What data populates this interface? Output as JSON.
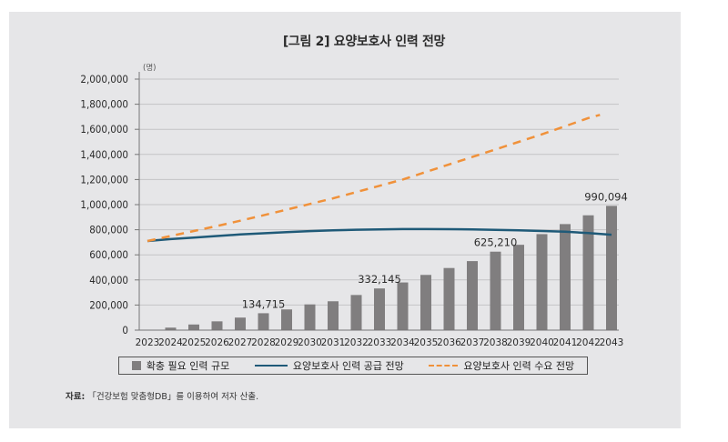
{
  "figure": {
    "title": "[그림 2] 요양보호사 인력 전망",
    "source_label": "자료:",
    "source_text": "「건강보험 맞춤형DB」를 이용하여 저자 산출."
  },
  "chart_data": {
    "type": "bar+line",
    "title": "[그림 2] 요양보호사 인력 전망",
    "ylabel": "(명)",
    "xlabel": "",
    "ylim": [
      0,
      2000000
    ],
    "yticks": [
      0,
      200000,
      400000,
      600000,
      800000,
      1000000,
      1200000,
      1400000,
      1600000,
      1800000,
      2000000
    ],
    "ytick_labels": [
      "0",
      "200,000",
      "400,000",
      "600,000",
      "800,000",
      "1,000,000",
      "1,200,000",
      "1,400,000",
      "1,600,000",
      "1,800,000",
      "2,000,000"
    ],
    "grid": true,
    "legend_position": "bottom",
    "categories": [
      "2023",
      "2024",
      "2025",
      "2026",
      "2027",
      "2028",
      "2029",
      "2030",
      "2031",
      "2032",
      "2033",
      "2034",
      "2035",
      "2036",
      "2037",
      "2038",
      "2039",
      "2040",
      "2041",
      "2042",
      "2043"
    ],
    "series": [
      {
        "name": "확충 필요 인력 규모",
        "type": "bar",
        "color": "#807e7f",
        "values": [
          0,
          20000,
          45000,
          70000,
          100000,
          134715,
          165000,
          205000,
          230000,
          280000,
          332145,
          380000,
          440000,
          495000,
          550000,
          625210,
          680000,
          765000,
          845000,
          915000,
          990094
        ]
      },
      {
        "name": "요양보호사 인력 공급 전망",
        "type": "line",
        "style": "solid",
        "color": "#1f5a78",
        "values": [
          710000,
          725000,
          738000,
          750000,
          762000,
          772000,
          781000,
          789000,
          795000,
          800000,
          803000,
          805000,
          805000,
          804000,
          802000,
          799000,
          795000,
          790000,
          784000,
          774000,
          760000
        ]
      },
      {
        "name": "요양보호사 인력 수요 전망",
        "type": "line",
        "style": "dashed",
        "color": "#f0913a",
        "values": [
          710000,
          750000,
          790000,
          830000,
          872000,
          915000,
          960000,
          1005000,
          1050000,
          1100000,
          1150000,
          1200000,
          1260000,
          1320000,
          1380000,
          1440000,
          1500000,
          1560000,
          1625000,
          1690000,
          1740000
        ]
      }
    ],
    "annotations": [
      {
        "category": "2028",
        "text": "134,715"
      },
      {
        "category": "2033",
        "text": "332,145"
      },
      {
        "category": "2038",
        "text": "625,210"
      },
      {
        "category": "2043",
        "text": "990,094"
      }
    ]
  },
  "legend": {
    "items": [
      "확충 필요 인력 규모",
      "요양보호사 인력 공급 전망",
      "요양보호사 인력 수요 전망"
    ]
  }
}
